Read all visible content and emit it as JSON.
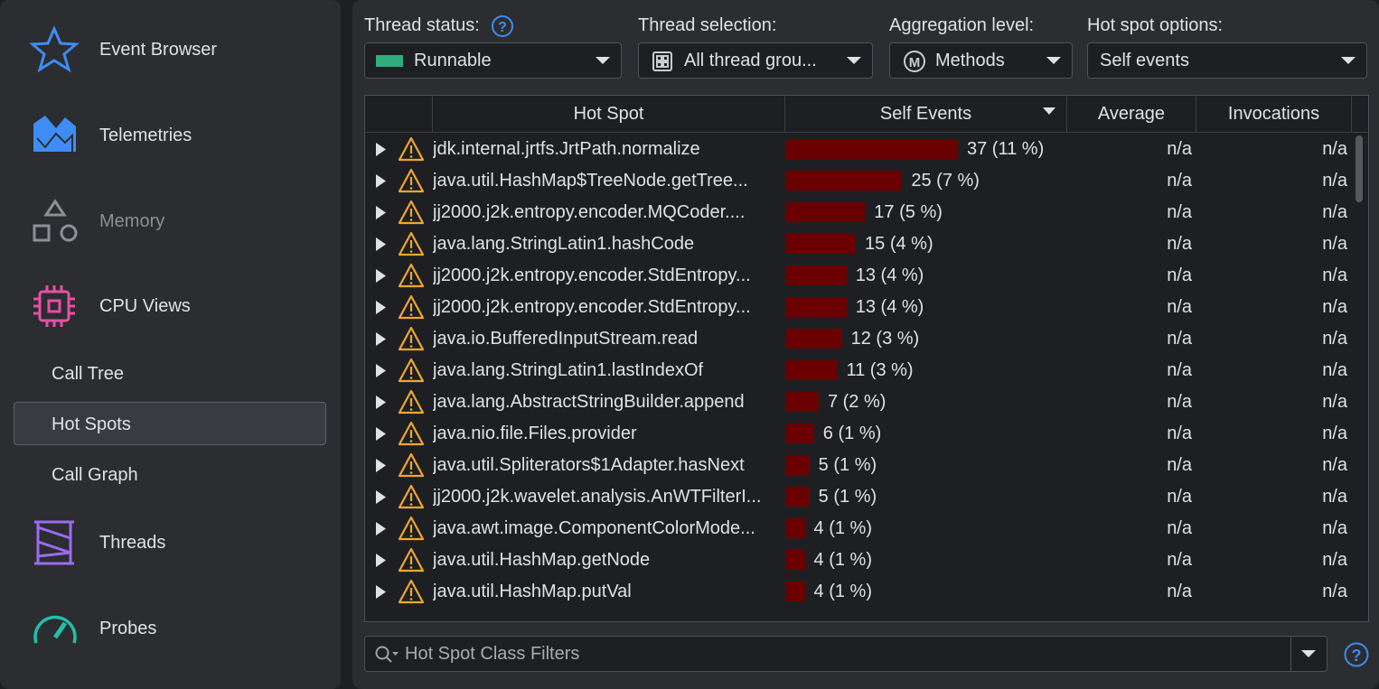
{
  "sidebar": [
    "Event Browser",
    "Telemetries",
    "Memory",
    "CPU Views",
    "Call Tree",
    "Hot Spots",
    "Call Graph",
    "Threads",
    "Probes"
  ],
  "toolbar": [
    {
      "label": "Thread status:",
      "value": "Runnable"
    },
    {
      "label": "Thread selection:",
      "value": "All thread grou..."
    },
    {
      "label": "Aggregation level:",
      "value": "Methods"
    },
    {
      "label": "Hot spot options:",
      "value": "Self events"
    }
  ],
  "table": {
    "columns": [
      "Hot Spot",
      "Self Events",
      "Average",
      "Invocations"
    ],
    "rows": [
      {
        "name": "jdk.internal.jrtfs.JrtPath.normalize",
        "self_events": 37,
        "self_events_label": "37 (11 %)",
        "average": "n/a",
        "invocations": "n/a"
      },
      {
        "name": "java.util.HashMap$TreeNode.getTree...",
        "self_events": 25,
        "self_events_label": "25 (7 %)",
        "average": "n/a",
        "invocations": "n/a"
      },
      {
        "name": "jj2000.j2k.entropy.encoder.MQCoder....",
        "self_events": 17,
        "self_events_label": "17 (5 %)",
        "average": "n/a",
        "invocations": "n/a"
      },
      {
        "name": "java.lang.StringLatin1.hashCode",
        "self_events": 15,
        "self_events_label": "15 (4 %)",
        "average": "n/a",
        "invocations": "n/a"
      },
      {
        "name": "jj2000.j2k.entropy.encoder.StdEntropy...",
        "self_events": 13,
        "self_events_label": "13 (4 %)",
        "average": "n/a",
        "invocations": "n/a"
      },
      {
        "name": "jj2000.j2k.entropy.encoder.StdEntropy...",
        "self_events": 13,
        "self_events_label": "13 (4 %)",
        "average": "n/a",
        "invocations": "n/a"
      },
      {
        "name": "java.io.BufferedInputStream.read",
        "self_events": 12,
        "self_events_label": "12 (3 %)",
        "average": "n/a",
        "invocations": "n/a"
      },
      {
        "name": "java.lang.StringLatin1.lastIndexOf",
        "self_events": 11,
        "self_events_label": "11 (3 %)",
        "average": "n/a",
        "invocations": "n/a"
      },
      {
        "name": "java.lang.AbstractStringBuilder.append",
        "self_events": 7,
        "self_events_label": "7 (2 %)",
        "average": "n/a",
        "invocations": "n/a"
      },
      {
        "name": "java.nio.file.Files.provider",
        "self_events": 6,
        "self_events_label": "6 (1 %)",
        "average": "n/a",
        "invocations": "n/a"
      },
      {
        "name": "java.util.Spliterators$1Adapter.hasNext",
        "self_events": 5,
        "self_events_label": "5 (1 %)",
        "average": "n/a",
        "invocations": "n/a"
      },
      {
        "name": "jj2000.j2k.wavelet.analysis.AnWTFilterI...",
        "self_events": 5,
        "self_events_label": "5 (1 %)",
        "average": "n/a",
        "invocations": "n/a"
      },
      {
        "name": "java.awt.image.ComponentColorMode...",
        "self_events": 4,
        "self_events_label": "4 (1 %)",
        "average": "n/a",
        "invocations": "n/a"
      },
      {
        "name": "java.util.HashMap.getNode",
        "self_events": 4,
        "self_events_label": "4 (1 %)",
        "average": "n/a",
        "invocations": "n/a"
      },
      {
        "name": "java.util.HashMap.putVal",
        "self_events": 4,
        "self_events_label": "4 (1 %)",
        "average": "n/a",
        "invocations": "n/a"
      }
    ]
  },
  "filter": {
    "placeholder": "Hot Spot Class Filters"
  }
}
